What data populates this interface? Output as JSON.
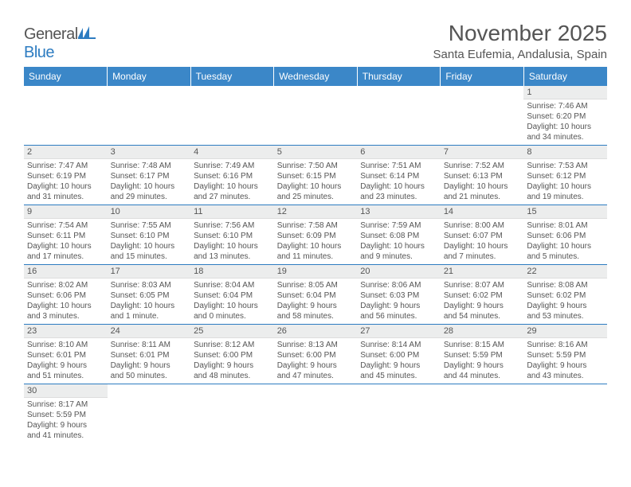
{
  "brand": {
    "part1": "General",
    "part2": "Blue",
    "text_color": "#555",
    "blue_color": "#2d7cc1"
  },
  "header": {
    "title": "November 2025",
    "location": "Santa Eufemia, Andalusia, Spain"
  },
  "styling": {
    "header_bg": "#3b87c8",
    "header_text": "#ffffff",
    "daynum_bg": "#eceded",
    "border_color": "#2d7cc1",
    "font_body": 10,
    "font_daynum": 11,
    "font_header": 12,
    "font_title": 28,
    "font_location": 15
  },
  "weekdays": [
    "Sunday",
    "Monday",
    "Tuesday",
    "Wednesday",
    "Thursday",
    "Friday",
    "Saturday"
  ],
  "weeks": [
    [
      null,
      null,
      null,
      null,
      null,
      null,
      {
        "d": "1",
        "sr": "Sunrise: 7:46 AM",
        "ss": "Sunset: 6:20 PM",
        "dl1": "Daylight: 10 hours",
        "dl2": "and 34 minutes."
      }
    ],
    [
      {
        "d": "2",
        "sr": "Sunrise: 7:47 AM",
        "ss": "Sunset: 6:19 PM",
        "dl1": "Daylight: 10 hours",
        "dl2": "and 31 minutes."
      },
      {
        "d": "3",
        "sr": "Sunrise: 7:48 AM",
        "ss": "Sunset: 6:17 PM",
        "dl1": "Daylight: 10 hours",
        "dl2": "and 29 minutes."
      },
      {
        "d": "4",
        "sr": "Sunrise: 7:49 AM",
        "ss": "Sunset: 6:16 PM",
        "dl1": "Daylight: 10 hours",
        "dl2": "and 27 minutes."
      },
      {
        "d": "5",
        "sr": "Sunrise: 7:50 AM",
        "ss": "Sunset: 6:15 PM",
        "dl1": "Daylight: 10 hours",
        "dl2": "and 25 minutes."
      },
      {
        "d": "6",
        "sr": "Sunrise: 7:51 AM",
        "ss": "Sunset: 6:14 PM",
        "dl1": "Daylight: 10 hours",
        "dl2": "and 23 minutes."
      },
      {
        "d": "7",
        "sr": "Sunrise: 7:52 AM",
        "ss": "Sunset: 6:13 PM",
        "dl1": "Daylight: 10 hours",
        "dl2": "and 21 minutes."
      },
      {
        "d": "8",
        "sr": "Sunrise: 7:53 AM",
        "ss": "Sunset: 6:12 PM",
        "dl1": "Daylight: 10 hours",
        "dl2": "and 19 minutes."
      }
    ],
    [
      {
        "d": "9",
        "sr": "Sunrise: 7:54 AM",
        "ss": "Sunset: 6:11 PM",
        "dl1": "Daylight: 10 hours",
        "dl2": "and 17 minutes."
      },
      {
        "d": "10",
        "sr": "Sunrise: 7:55 AM",
        "ss": "Sunset: 6:10 PM",
        "dl1": "Daylight: 10 hours",
        "dl2": "and 15 minutes."
      },
      {
        "d": "11",
        "sr": "Sunrise: 7:56 AM",
        "ss": "Sunset: 6:10 PM",
        "dl1": "Daylight: 10 hours",
        "dl2": "and 13 minutes."
      },
      {
        "d": "12",
        "sr": "Sunrise: 7:58 AM",
        "ss": "Sunset: 6:09 PM",
        "dl1": "Daylight: 10 hours",
        "dl2": "and 11 minutes."
      },
      {
        "d": "13",
        "sr": "Sunrise: 7:59 AM",
        "ss": "Sunset: 6:08 PM",
        "dl1": "Daylight: 10 hours",
        "dl2": "and 9 minutes."
      },
      {
        "d": "14",
        "sr": "Sunrise: 8:00 AM",
        "ss": "Sunset: 6:07 PM",
        "dl1": "Daylight: 10 hours",
        "dl2": "and 7 minutes."
      },
      {
        "d": "15",
        "sr": "Sunrise: 8:01 AM",
        "ss": "Sunset: 6:06 PM",
        "dl1": "Daylight: 10 hours",
        "dl2": "and 5 minutes."
      }
    ],
    [
      {
        "d": "16",
        "sr": "Sunrise: 8:02 AM",
        "ss": "Sunset: 6:06 PM",
        "dl1": "Daylight: 10 hours",
        "dl2": "and 3 minutes."
      },
      {
        "d": "17",
        "sr": "Sunrise: 8:03 AM",
        "ss": "Sunset: 6:05 PM",
        "dl1": "Daylight: 10 hours",
        "dl2": "and 1 minute."
      },
      {
        "d": "18",
        "sr": "Sunrise: 8:04 AM",
        "ss": "Sunset: 6:04 PM",
        "dl1": "Daylight: 10 hours",
        "dl2": "and 0 minutes."
      },
      {
        "d": "19",
        "sr": "Sunrise: 8:05 AM",
        "ss": "Sunset: 6:04 PM",
        "dl1": "Daylight: 9 hours",
        "dl2": "and 58 minutes."
      },
      {
        "d": "20",
        "sr": "Sunrise: 8:06 AM",
        "ss": "Sunset: 6:03 PM",
        "dl1": "Daylight: 9 hours",
        "dl2": "and 56 minutes."
      },
      {
        "d": "21",
        "sr": "Sunrise: 8:07 AM",
        "ss": "Sunset: 6:02 PM",
        "dl1": "Daylight: 9 hours",
        "dl2": "and 54 minutes."
      },
      {
        "d": "22",
        "sr": "Sunrise: 8:08 AM",
        "ss": "Sunset: 6:02 PM",
        "dl1": "Daylight: 9 hours",
        "dl2": "and 53 minutes."
      }
    ],
    [
      {
        "d": "23",
        "sr": "Sunrise: 8:10 AM",
        "ss": "Sunset: 6:01 PM",
        "dl1": "Daylight: 9 hours",
        "dl2": "and 51 minutes."
      },
      {
        "d": "24",
        "sr": "Sunrise: 8:11 AM",
        "ss": "Sunset: 6:01 PM",
        "dl1": "Daylight: 9 hours",
        "dl2": "and 50 minutes."
      },
      {
        "d": "25",
        "sr": "Sunrise: 8:12 AM",
        "ss": "Sunset: 6:00 PM",
        "dl1": "Daylight: 9 hours",
        "dl2": "and 48 minutes."
      },
      {
        "d": "26",
        "sr": "Sunrise: 8:13 AM",
        "ss": "Sunset: 6:00 PM",
        "dl1": "Daylight: 9 hours",
        "dl2": "and 47 minutes."
      },
      {
        "d": "27",
        "sr": "Sunrise: 8:14 AM",
        "ss": "Sunset: 6:00 PM",
        "dl1": "Daylight: 9 hours",
        "dl2": "and 45 minutes."
      },
      {
        "d": "28",
        "sr": "Sunrise: 8:15 AM",
        "ss": "Sunset: 5:59 PM",
        "dl1": "Daylight: 9 hours",
        "dl2": "and 44 minutes."
      },
      {
        "d": "29",
        "sr": "Sunrise: 8:16 AM",
        "ss": "Sunset: 5:59 PM",
        "dl1": "Daylight: 9 hours",
        "dl2": "and 43 minutes."
      }
    ],
    [
      {
        "d": "30",
        "sr": "Sunrise: 8:17 AM",
        "ss": "Sunset: 5:59 PM",
        "dl1": "Daylight: 9 hours",
        "dl2": "and 41 minutes."
      },
      null,
      null,
      null,
      null,
      null,
      null
    ]
  ]
}
